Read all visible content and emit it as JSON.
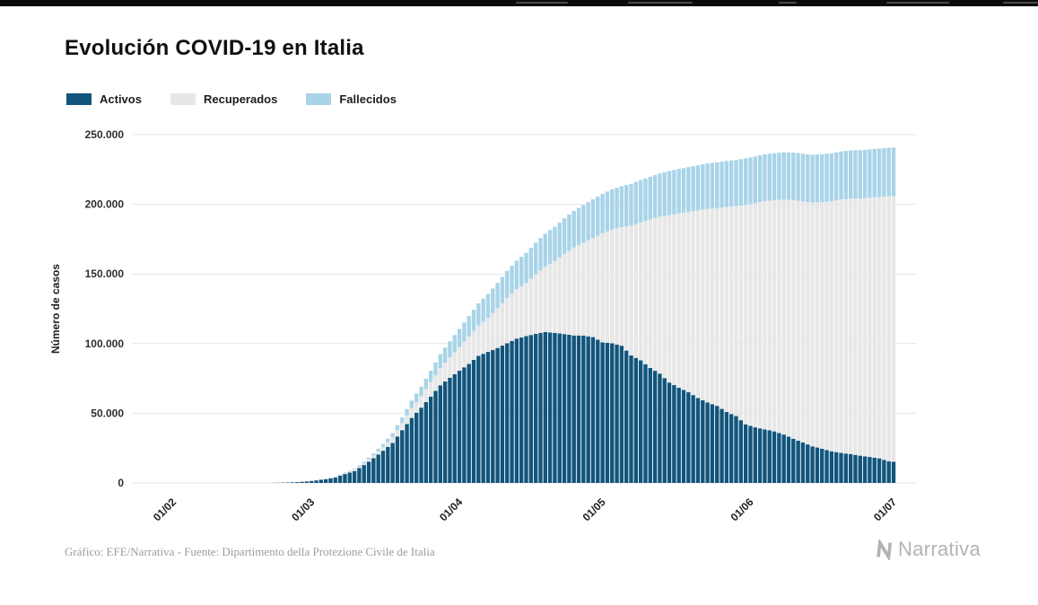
{
  "page": {
    "title": "Evolución COVID-19 en Italia",
    "footer_credit": "Gráfico: EFE/Narrativa - Fuente: Dipartimento della Protezione Civile de Italia",
    "brand_name": "Narrativa"
  },
  "legend": [
    {
      "label": "Activos",
      "color": "#11557C"
    },
    {
      "label": "Recuperados",
      "color": "#E7E7E7"
    },
    {
      "label": "Fallecidos",
      "color": "#A9D4E8"
    }
  ],
  "chart_data": {
    "type": "bar",
    "stacked": true,
    "title": "Evolución COVID-19 en Italia",
    "xlabel": "",
    "ylabel": "Número de casos",
    "ylim": [
      0,
      250000
    ],
    "grid": "horizontal",
    "legend_position": "top-left",
    "y_ticks": [
      {
        "value": 0,
        "label": "0"
      },
      {
        "value": 50000,
        "label": "50.000"
      },
      {
        "value": 100000,
        "label": "100.000"
      },
      {
        "value": 150000,
        "label": "150.000"
      },
      {
        "value": 200000,
        "label": "200.000"
      },
      {
        "value": 250000,
        "label": "250.000"
      }
    ],
    "x_ticks": [
      {
        "day": 0,
        "label": "01/02"
      },
      {
        "day": 29,
        "label": "01/03"
      },
      {
        "day": 60,
        "label": "01/04"
      },
      {
        "day": 90,
        "label": "01/05"
      },
      {
        "day": 121,
        "label": "01/06"
      },
      {
        "day": 151,
        "label": "01/07"
      }
    ],
    "x_unit": "days since 01/02 (daily bars)",
    "days": [
      0,
      19,
      20,
      22,
      24,
      26,
      28,
      30,
      32,
      34,
      36,
      38,
      40,
      42,
      44,
      46,
      48,
      50,
      52,
      54,
      56,
      58,
      60,
      62,
      64,
      66,
      68,
      70,
      72,
      74,
      76,
      78,
      80,
      82,
      84,
      86,
      88,
      90,
      92,
      94,
      96,
      98,
      100,
      102,
      104,
      106,
      108,
      110,
      112,
      114,
      116,
      118,
      120,
      122,
      124,
      126,
      128,
      130,
      132,
      134,
      136,
      138,
      140,
      142,
      144,
      146,
      148,
      150,
      151
    ],
    "series": [
      {
        "name": "Activos",
        "color": "#11557C",
        "values": [
          0,
          1,
          18,
          150,
          311,
          588,
          1049,
          1835,
          2706,
          3916,
          6387,
          8514,
          12839,
          17750,
          23073,
          28710,
          37860,
          46638,
          54030,
          62013,
          70065,
          75528,
          80572,
          85388,
          91246,
          94067,
          96877,
          100269,
          103616,
          105418,
          106962,
          108257,
          107709,
          106848,
          105847,
          105813,
          104657,
          100943,
          100179,
          98467,
          91528,
          87961,
          82488,
          78457,
          72070,
          68351,
          65129,
          60960,
          57752,
          55300,
          50966,
          47986,
          42075,
          39893,
          38429,
          36976,
          34730,
          31710,
          28997,
          26274,
          24569,
          22702,
          21543,
          20637,
          19573,
          18655,
          17638,
          15563,
          15255
        ]
      },
      {
        "name": "Recuperados",
        "color": "#E7E7E7",
        "values": [
          0,
          0,
          0,
          2,
          1,
          45,
          50,
          149,
          276,
          523,
          622,
          1004,
          1258,
          1966,
          2749,
          4025,
          5129,
          7024,
          8326,
          10361,
          12384,
          14620,
          16847,
          19758,
          21815,
          24392,
          28470,
          32534,
          35435,
          38092,
          42727,
          47055,
          51600,
          57576,
          63120,
          66624,
          71252,
          78249,
          81654,
          85231,
          93245,
          99023,
          106587,
          112541,
          120205,
          125176,
          129401,
          134560,
          138840,
          141981,
          147101,
          150604,
          157507,
          160938,
          163781,
          165837,
          168646,
          171338,
          173085,
          174865,
          177010,
          179455,
          181907,
          183426,
          184585,
          186111,
          187615,
          190248,
          190717
        ]
      },
      {
        "name": "Fallecidos",
        "color": "#A9D4E8",
        "values": [
          0,
          0,
          1,
          3,
          10,
          17,
          29,
          52,
          107,
          197,
          366,
          631,
          1016,
          1441,
          2158,
          2978,
          4032,
          5476,
          6820,
          8215,
          10023,
          11591,
          13155,
          14681,
          15887,
          17127,
          18279,
          19468,
          20465,
          21645,
          22745,
          23660,
          24648,
          25549,
          26384,
          26977,
          27682,
          28236,
          28884,
          29315,
          29958,
          30395,
          30739,
          31106,
          31610,
          31908,
          32169,
          32486,
          32735,
          32877,
          33072,
          33229,
          33415,
          33530,
          33689,
          33846,
          33964,
          34114,
          34223,
          34345,
          34405,
          34448,
          34514,
          34657,
          34678,
          34708,
          34738,
          34767,
          34788
        ]
      }
    ]
  }
}
